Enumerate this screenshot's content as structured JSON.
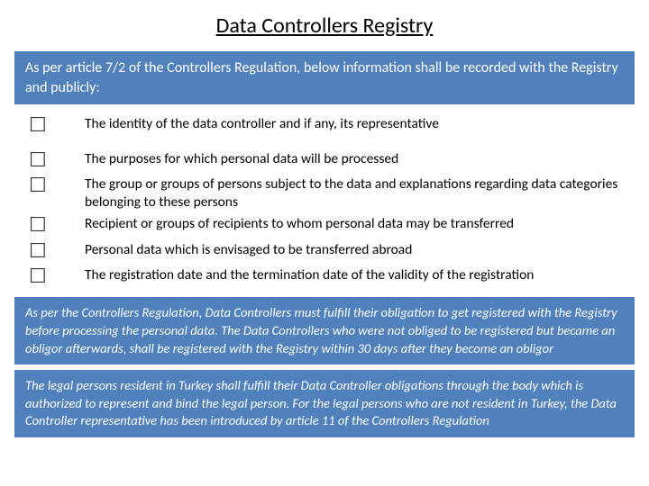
{
  "title": "Data Controllers Registry",
  "intro_box": "As per article 7/2 of the Controllers Regulation, below information shall be recorded with the Registry and publicly:",
  "items": [
    "The identity of the data controller and if any, its representative",
    "The purposes for which personal data will be processed",
    "The group or groups of persons subject to the data and explanations regarding data categories belonging to these persons",
    "Recipient or groups of recipients to whom personal data may be transferred",
    "Personal data which is envisaged to be transferred abroad",
    "The registration date and the termination date of the validity of the registration"
  ],
  "note_box_1": "As per the Controllers Regulation, Data Controllers must fulfill their obligation to get registered with the Registry before processing the personal data. The Data Controllers who were not obliged to be registered but became an obligor afterwards, shall be registered with the Registry within 30 days after they become an obligor",
  "note_box_2": "The legal persons resident in Turkey shall fulfill their Data Controller obligations through the body which is authorized to represent and bind the legal person. For the legal persons who are not resident in Turkey, the Data Controller representative has been introduced by article 11 of the Controllers Regulation",
  "colors": {
    "box_bg": "#5181bd",
    "box_text": "#ffffff",
    "body_text": "#000000",
    "page_bg": "#ffffff"
  },
  "checkbox_glyph": "☐"
}
